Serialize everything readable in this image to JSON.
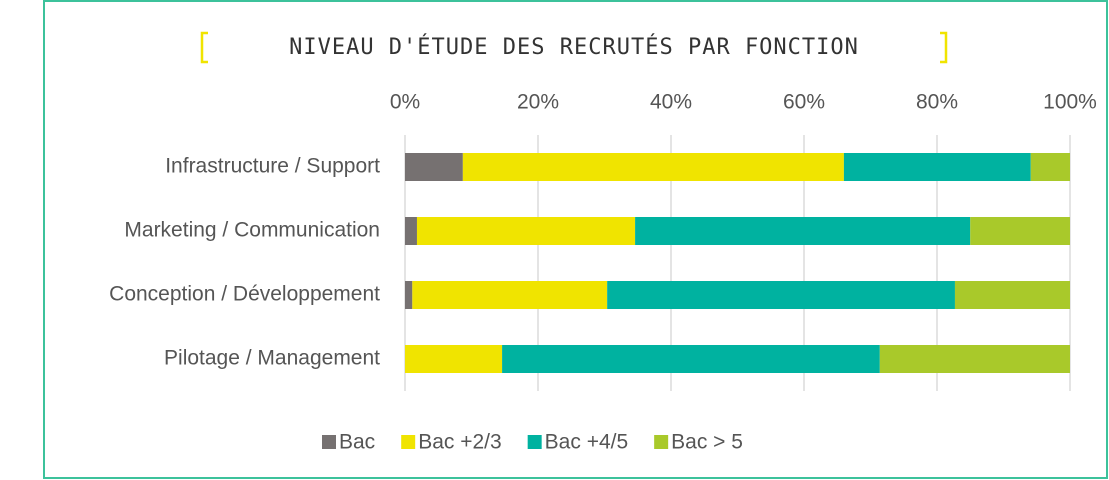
{
  "chart_data": {
    "type": "stacked-bar-horizontal",
    "title": "NIVEAU D'ÉTUDE DES RECRUTÉS PAR FONCTION",
    "categories": [
      "Infrastructure / Support",
      "Marketing / Communication",
      "Conception / Développement",
      "Pilotage / Management"
    ],
    "series": [
      {
        "name": "Bac",
        "color": "#767171",
        "values": [
          8.7,
          1.8,
          1.1,
          0
        ]
      },
      {
        "name": "Bac +2/3",
        "color": "#f0e400",
        "values": [
          57.3,
          32.8,
          29.3,
          14.6
        ]
      },
      {
        "name": "Bac +4/5",
        "color": "#00b2a0",
        "values": [
          28.1,
          50.4,
          52.3,
          56.8
        ]
      },
      {
        "name": "Bac > 5",
        "color": "#a9c92a",
        "values": [
          5.9,
          15.0,
          17.3,
          28.6
        ]
      }
    ],
    "xlim": [
      0,
      100
    ],
    "xticks": [
      {
        "value": 0,
        "label": "0%"
      },
      {
        "value": 20,
        "label": "20%"
      },
      {
        "value": 40,
        "label": "40%"
      },
      {
        "value": 60,
        "label": "60%"
      },
      {
        "value": 80,
        "label": "80%"
      },
      {
        "value": 100,
        "label": "100%"
      }
    ],
    "grid": true,
    "legend": "bottom"
  }
}
